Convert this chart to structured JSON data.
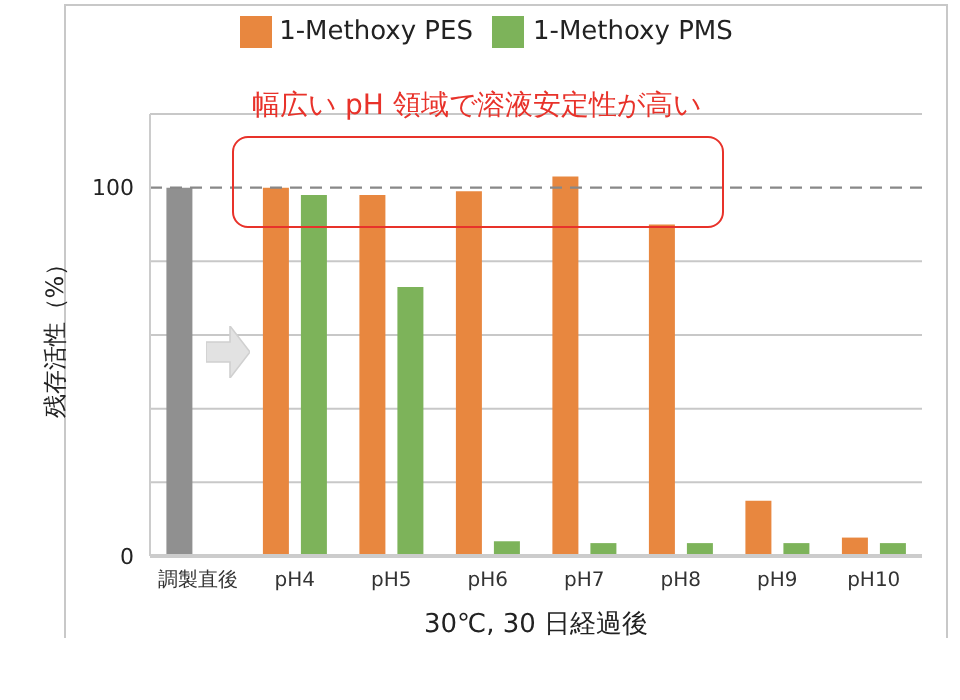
{
  "chart_data": {
    "type": "bar",
    "categories": [
      "調製直後",
      "pH4",
      "pH5",
      "pH6",
      "pH7",
      "pH8",
      "pH9",
      "pH10"
    ],
    "series": [
      {
        "color": "#909090",
        "values": [
          100,
          null,
          null,
          null,
          null,
          null,
          null,
          null
        ]
      },
      {
        "name": "1-Methoxy PES",
        "color": "#e8873f",
        "values": [
          null,
          100,
          98,
          99,
          103,
          90,
          15,
          5
        ]
      },
      {
        "name": "1-Methoxy PMS",
        "color": "#7db35a",
        "values": [
          null,
          98,
          73,
          4,
          3.5,
          3.5,
          3.5,
          3.5
        ]
      }
    ],
    "ylim": [
      0,
      120
    ],
    "yticks": [
      0,
      {
        "value": 20,
        "label": null
      },
      {
        "value": 40,
        "label": null
      },
      {
        "value": 60,
        "label": null
      },
      {
        "value": 80,
        "label": null
      },
      100,
      {
        "value": 120,
        "label": null
      }
    ],
    "ylabel": "残存活性（%）",
    "xlabel": "30℃, 30 日経過後",
    "annotations": [
      "幅広い pH 領域で溶液安定性が高い"
    ],
    "ref_lines": [
      {
        "axis": "y",
        "value": 100,
        "color": "#888888",
        "line_style": "dashed"
      }
    ],
    "grid": "y",
    "legend": "top"
  }
}
